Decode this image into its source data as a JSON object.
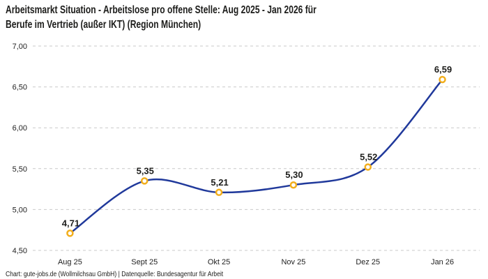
{
  "title": {
    "line1": "Arbeitsmarkt Situation - Arbeitslose pro offene Stelle: Aug 2025 - Jan 2026 für",
    "line2": "Berufe im Vertrieb (außer IKT) (Region München)"
  },
  "footer": "Chart: gute-jobs.de (Wollmilchsau GmbH) | Datenquelle: Bundesagentur für Arbeit",
  "colors": {
    "line": "#20399b",
    "marker_ring": "#f2ae1c",
    "marker_fill": "#ffffff",
    "grid": "#c9c9c9",
    "text": "#1d1d1b"
  },
  "chart_data": {
    "type": "line",
    "title": "Arbeitsmarkt Situation - Arbeitslose pro offene Stelle: Aug 2025 - Jan 2026 für Berufe im Vertrieb (außer IKT) (Region München)",
    "categories": [
      "Aug 25",
      "Sept 25",
      "Okt 25",
      "Nov 25",
      "Dez 25",
      "Jan 26"
    ],
    "values": [
      4.71,
      5.35,
      5.21,
      5.3,
      5.52,
      6.59
    ],
    "value_labels": [
      "4,71",
      "5,35",
      "5,21",
      "5,30",
      "5,52",
      "6,59"
    ],
    "xlabel": "",
    "ylabel": "",
    "ylim": [
      4.5,
      7.0
    ],
    "ytick_step": 0.5,
    "ytick_labels": [
      "4,50",
      "5,00",
      "5,50",
      "6,00",
      "6,50",
      "7,00"
    ],
    "grid": "horizontal-dashed",
    "legend": "none",
    "curve": "smooth"
  }
}
